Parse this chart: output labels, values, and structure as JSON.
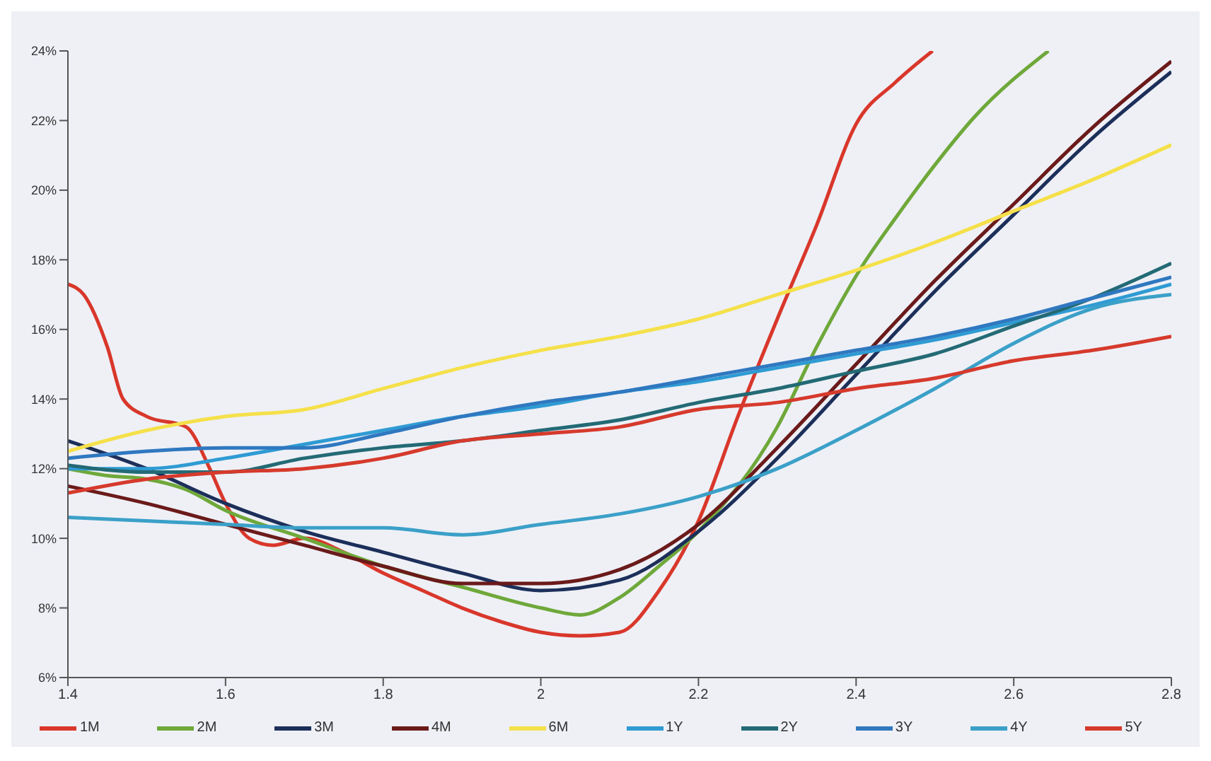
{
  "chart_data": {
    "type": "line",
    "x": [
      1.4,
      1.5,
      1.6,
      1.7,
      1.8,
      1.9,
      2.0,
      2.1,
      2.2,
      2.3,
      2.4,
      2.5,
      2.6,
      2.7,
      2.8
    ],
    "series": [
      {
        "name": "1M",
        "color": "#d9372b",
        "x": [
          1.4,
          1.42,
          1.45,
          1.47,
          1.5,
          1.55,
          1.58,
          1.6,
          1.63,
          1.66,
          1.7,
          1.75,
          1.8,
          1.85,
          1.9,
          1.95,
          2.0,
          2.05,
          2.1,
          2.15,
          2.2,
          2.25,
          2.3,
          2.35,
          2.4,
          2.45,
          2.497
        ],
        "values": [
          17.3,
          17.0,
          15.5,
          14.0,
          13.5,
          13.2,
          12.0,
          11.0,
          10.0,
          9.8,
          10.0,
          9.6,
          9.0,
          8.5,
          8.0,
          7.6,
          7.3,
          7.2,
          7.3,
          8.5,
          10.5,
          13.5,
          16.3,
          19.0,
          21.9,
          23.1,
          24
        ]
      },
      {
        "name": "2M",
        "color": "#6fa83a",
        "x": [
          1.4,
          1.45,
          1.5,
          1.55,
          1.6,
          1.7,
          1.8,
          1.9,
          2.0,
          2.05,
          2.1,
          2.15,
          2.2,
          2.3,
          2.35,
          2.41,
          2.45,
          2.506,
          2.55,
          2.644
        ],
        "values": [
          12.0,
          11.8,
          11.7,
          11.4,
          10.8,
          10.0,
          9.2,
          8.6,
          8.0,
          7.8,
          8.3,
          9.2,
          10.2,
          13.2,
          15.5,
          17.9,
          19.2,
          20.9,
          22.1,
          24
        ]
      },
      {
        "name": "3M",
        "color": "#1c2f5a",
        "values": [
          12.8,
          12.0,
          11.0,
          10.2,
          9.6,
          9.0,
          8.5,
          8.8,
          10.2,
          12.3,
          14.7,
          17.1,
          19.3,
          21.5,
          23.4
        ]
      },
      {
        "name": "4M",
        "color": "#6b1a1a",
        "values": [
          11.5,
          11.0,
          10.4,
          9.8,
          9.2,
          8.7,
          8.7,
          9.1,
          10.4,
          12.6,
          15.0,
          17.4,
          19.6,
          21.8,
          23.7
        ]
      },
      {
        "name": "6M",
        "color": "#f5e04a",
        "values": [
          12.5,
          13.1,
          13.5,
          13.7,
          14.3,
          14.9,
          15.4,
          15.8,
          16.3,
          17.0,
          17.7,
          18.5,
          19.4,
          20.3,
          21.3
        ]
      },
      {
        "name": "1Y",
        "color": "#2f9bd3",
        "values": [
          12.0,
          12.0,
          12.3,
          12.7,
          13.1,
          13.5,
          13.8,
          14.2,
          14.5,
          14.9,
          15.3,
          15.7,
          16.2,
          16.7,
          17.3
        ]
      },
      {
        "name": "2Y",
        "color": "#236a75",
        "values": [
          12.1,
          11.9,
          11.9,
          12.3,
          12.6,
          12.8,
          13.1,
          13.4,
          13.9,
          14.3,
          14.8,
          15.3,
          16.1,
          16.9,
          17.9
        ]
      },
      {
        "name": "3Y",
        "color": "#2f78c0",
        "values": [
          12.3,
          12.5,
          12.6,
          12.6,
          13.0,
          13.5,
          13.9,
          14.2,
          14.6,
          15.0,
          15.4,
          15.8,
          16.3,
          16.9,
          17.5
        ]
      },
      {
        "name": "4Y",
        "color": "#3ba0c8",
        "values": [
          10.6,
          10.5,
          10.4,
          10.3,
          10.3,
          10.1,
          10.4,
          10.7,
          11.2,
          12.0,
          13.1,
          14.3,
          15.6,
          16.6,
          17.0
        ]
      },
      {
        "name": "5Y",
        "color": "#d63a2c",
        "values": [
          11.3,
          11.7,
          11.9,
          12.0,
          12.3,
          12.8,
          13.0,
          13.2,
          13.7,
          13.9,
          14.3,
          14.6,
          15.1,
          15.4,
          15.8
        ]
      }
    ],
    "xlim": [
      1.4,
      2.8
    ],
    "xticks": [
      1.4,
      1.6,
      1.8,
      2,
      2.2,
      2.4,
      2.6,
      2.8
    ],
    "ylim": [
      6,
      24
    ],
    "yticks": [
      {
        "value": 6,
        "label": "6%"
      },
      {
        "value": 8,
        "label": "8%"
      },
      {
        "value": 10,
        "label": "10%"
      },
      {
        "value": 12,
        "label": "12%"
      },
      {
        "value": 14,
        "label": "14%"
      },
      {
        "value": 16,
        "label": "16%"
      },
      {
        "value": 18,
        "label": "18%"
      },
      {
        "value": 20,
        "label": "20%"
      },
      {
        "value": 22,
        "label": "22%"
      },
      {
        "value": 24,
        "label": "24%"
      }
    ],
    "grid": false,
    "legend": "bottom"
  }
}
